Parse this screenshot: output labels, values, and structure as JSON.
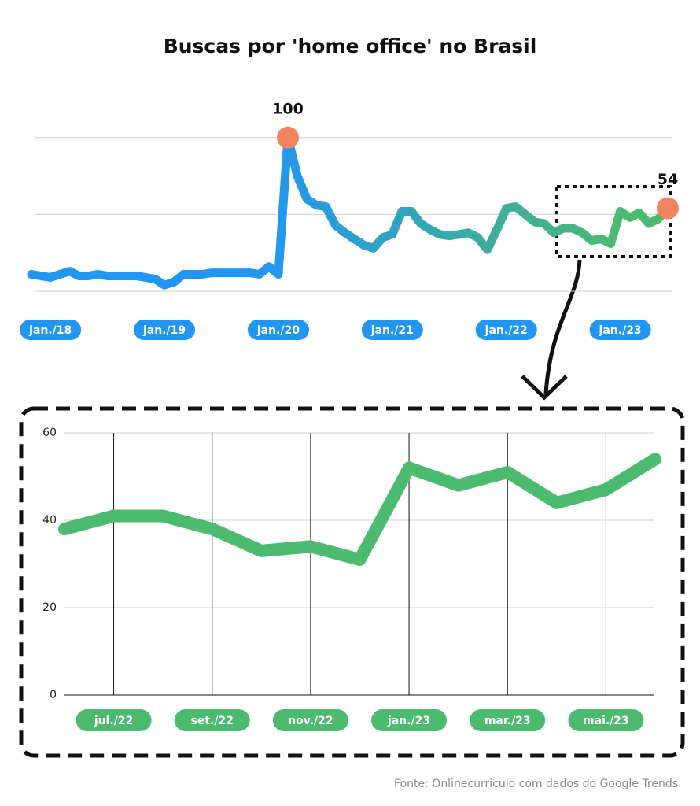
{
  "chart_data": [
    {
      "type": "line",
      "title": "Buscas por 'home office' no Brasil",
      "categories": [
        null,
        null,
        "jan./18",
        null,
        null,
        null,
        null,
        null,
        null,
        null,
        null,
        null,
        null,
        null,
        "jan./19",
        null,
        null,
        null,
        null,
        null,
        null,
        null,
        null,
        null,
        null,
        null,
        "jan./20",
        null,
        null,
        null,
        null,
        null,
        null,
        null,
        null,
        null,
        null,
        null,
        "jan./21",
        null,
        null,
        null,
        null,
        null,
        null,
        null,
        null,
        null,
        null,
        null,
        "jan./22",
        null,
        null,
        null,
        null,
        null,
        null,
        null,
        null,
        null,
        null,
        null,
        "jan./23",
        null,
        null,
        null,
        null,
        null
      ],
      "values": [
        11,
        10,
        9,
        11,
        13,
        10,
        10,
        11,
        10,
        10,
        10,
        10,
        9,
        8,
        4,
        6,
        11,
        11,
        11,
        12,
        12,
        12,
        12,
        12,
        11,
        16,
        11,
        100,
        75,
        60,
        56,
        55,
        43,
        38,
        34,
        30,
        28,
        35,
        37,
        52,
        52,
        44,
        40,
        37,
        36,
        37,
        38,
        35,
        27,
        40,
        54,
        55,
        50,
        45,
        44,
        38,
        41,
        41,
        38,
        33,
        34,
        31,
        52,
        48,
        51,
        44,
        47,
        54
      ],
      "value_labels": [
        null,
        null,
        null,
        null,
        null,
        null,
        null,
        null,
        null,
        null,
        null,
        null,
        null,
        null,
        null,
        null,
        null,
        null,
        null,
        null,
        null,
        null,
        null,
        null,
        null,
        null,
        null,
        "100",
        null,
        null,
        null,
        null,
        null,
        null,
        null,
        null,
        null,
        null,
        null,
        null,
        null,
        null,
        null,
        null,
        null,
        null,
        null,
        null,
        null,
        null,
        null,
        null,
        null,
        null,
        null,
        null,
        null,
        null,
        null,
        null,
        null,
        null,
        null,
        null,
        null,
        null,
        null,
        "54"
      ],
      "gradient": [
        "#2196f3",
        "#4cbb70"
      ],
      "marker_color": "#f4845f",
      "label_color": "#2196f3",
      "ylim": [
        0,
        105
      ],
      "yticks": [
        0,
        50,
        100
      ],
      "grid": true
    },
    {
      "type": "line",
      "categories": [
        null,
        "jul./22",
        null,
        "set./22",
        null,
        "nov./22",
        null,
        "jan./23",
        null,
        "mar./23",
        null,
        "mai./23",
        null
      ],
      "values": [
        38,
        41,
        41,
        38,
        33,
        34,
        31,
        52,
        48,
        51,
        44,
        47,
        54
      ],
      "color": "#4cbb70",
      "label_color": "#4cbb70",
      "ylim": [
        0,
        60
      ],
      "yticks": [
        0,
        20,
        40,
        60
      ],
      "grid": true
    }
  ],
  "source": "Fonte: Onlinecurriculo com dados do Google Trends"
}
